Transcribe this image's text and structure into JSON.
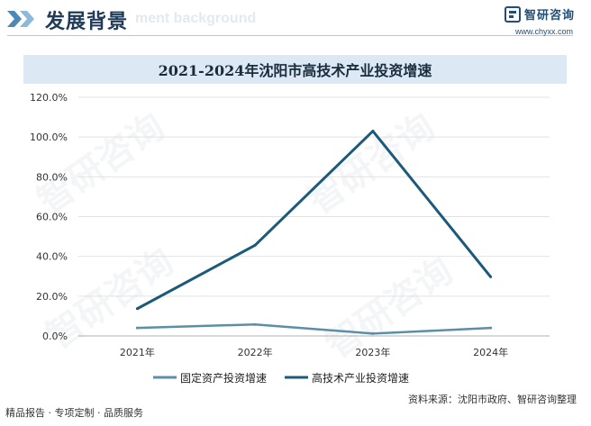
{
  "header": {
    "title": "发展背景",
    "subtitle_ghost": "ment background",
    "brand_name": "智研咨询",
    "brand_url": "www.chyxx.com"
  },
  "chart_data": {
    "type": "line",
    "title": "2021-2024年沈阳市高技术产业投资增速",
    "categories": [
      "2021年",
      "2022年",
      "2023年",
      "2024年"
    ],
    "y_ticks": [
      "0.0%",
      "20.0%",
      "40.0%",
      "60.0%",
      "80.0%",
      "100.0%",
      "120.0%"
    ],
    "ylim": [
      0,
      120
    ],
    "grid": true,
    "legend_position": "bottom",
    "series": [
      {
        "name": "固定资产投资增速",
        "values": [
          4.0,
          5.8,
          1.2,
          4.0
        ],
        "color": "#5b8fa8"
      },
      {
        "name": "高技术产业投资增速",
        "values": [
          13.7,
          45.6,
          103.0,
          29.7
        ],
        "color": "#1b5a7a"
      }
    ]
  },
  "footer": {
    "left": "精品报告 · 专项定制 · 品质服务",
    "source": "资料来源：沈阳市政府、智研咨询整理"
  },
  "watermark": "智研咨询"
}
